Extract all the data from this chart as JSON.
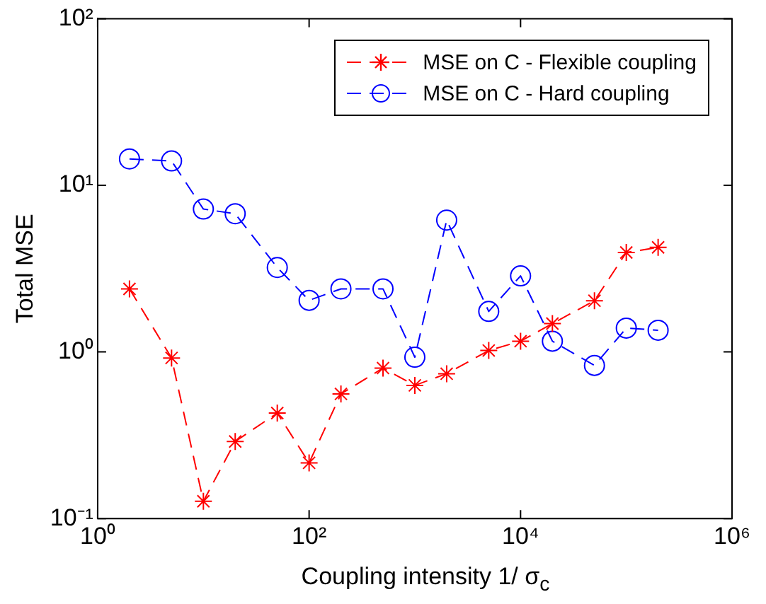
{
  "chart_data": {
    "type": "line",
    "xlabel": "Coupling intensity 1/ σ$_{c}$",
    "ylabel": "Total MSE",
    "x": [
      2,
      5,
      10,
      20,
      50,
      100,
      200,
      500,
      1000,
      2000,
      5000,
      10000,
      20000,
      50000,
      100000,
      200000
    ],
    "series": [
      {
        "name": "MSE on C - Flexible coupling",
        "color": "#ff0000",
        "marker": "cross",
        "line_style": "dashed",
        "values": [
          2.39,
          0.92,
          0.127,
          0.29,
          0.43,
          0.216,
          0.56,
          0.8,
          0.63,
          0.74,
          1.02,
          1.16,
          1.48,
          2.03,
          3.95,
          4.24
        ]
      },
      {
        "name": "MSE on C - Hard coupling",
        "color": "#0000ff",
        "marker": "circle",
        "line_style": "dashed",
        "values": [
          14.4,
          14.0,
          7.2,
          6.75,
          3.21,
          2.04,
          2.39,
          2.39,
          0.93,
          6.18,
          1.75,
          2.86,
          1.16,
          0.83,
          1.39,
          1.35
        ]
      }
    ],
    "log": "xy",
    "grid": false,
    "legend": "top right",
    "xlim": [
      1,
      1000000
    ],
    "ylim": [
      0.1,
      100
    ],
    "xticks": [
      {
        "value": 1,
        "label": "10⁰"
      },
      {
        "value": 100,
        "label": "10²"
      },
      {
        "value": 10000,
        "label": "10⁴"
      },
      {
        "value": 1000000,
        "label": "10⁶"
      }
    ],
    "yticks": [
      {
        "value": 0.1,
        "label": "10⁻¹"
      },
      {
        "value": 1,
        "label": "10⁰"
      },
      {
        "value": 10,
        "label": "10¹"
      },
      {
        "value": 100,
        "label": "10²"
      }
    ]
  }
}
